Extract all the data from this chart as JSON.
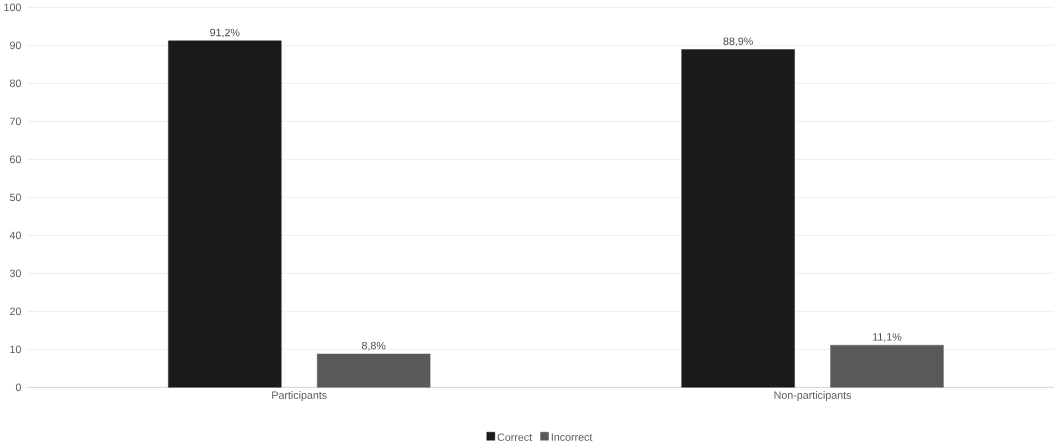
{
  "chart_data": {
    "type": "bar",
    "categories": [
      "Participants",
      "Non-participants"
    ],
    "series": [
      {
        "name": "Correct",
        "color": "#1a1a1a",
        "values": [
          91.2,
          88.9
        ],
        "value_labels": [
          "91,2%",
          "88,9%"
        ]
      },
      {
        "name": "Incorrect",
        "color": "#595959",
        "values": [
          8.8,
          11.1
        ],
        "value_labels": [
          "8,8%",
          "11,1%"
        ]
      }
    ],
    "ylim": [
      0,
      100
    ],
    "yticks": [
      0,
      10,
      20,
      30,
      40,
      50,
      60,
      70,
      80,
      90,
      100
    ],
    "grid": "y",
    "legend": "bottom"
  }
}
